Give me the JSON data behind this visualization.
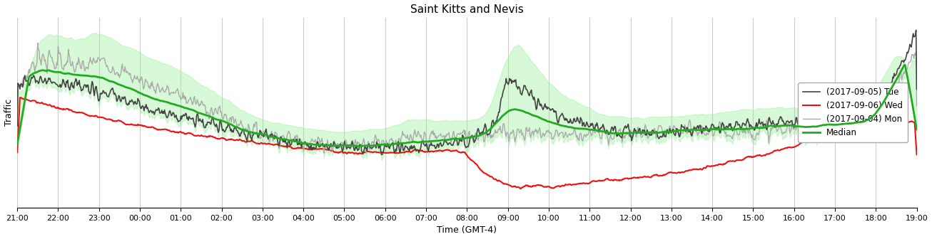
{
  "title": "Saint Kitts and Nevis",
  "xlabel": "Time (GMT-4)",
  "ylabel": "Traffic",
  "legend": [
    {
      "label": "(2017-09-04) Mon",
      "color": "#aaaaaa",
      "lw": 1.0
    },
    {
      "label": "(2017-09-05) Tue",
      "color": "#444444",
      "lw": 1.2
    },
    {
      "label": "(2017-09-06) Wed",
      "color": "#ee1111",
      "lw": 1.5
    },
    {
      "label": "Median",
      "color": "#22aa22",
      "lw": 2.0
    }
  ],
  "shade_color": "#90ee90",
  "shade_alpha": 0.35,
  "grid_color": "#cccccc",
  "background": "#ffffff",
  "x_tick_labels": [
    "21:00",
    "22:00",
    "23:00",
    "00:00",
    "01:00",
    "02:00",
    "03:00",
    "04:00",
    "05:00",
    "06:00",
    "07:00",
    "08:00",
    "09:00",
    "10:00",
    "11:00",
    "12:00",
    "13:00",
    "14:00",
    "15:00",
    "16:00",
    "17:00",
    "18:00",
    "19:00"
  ]
}
